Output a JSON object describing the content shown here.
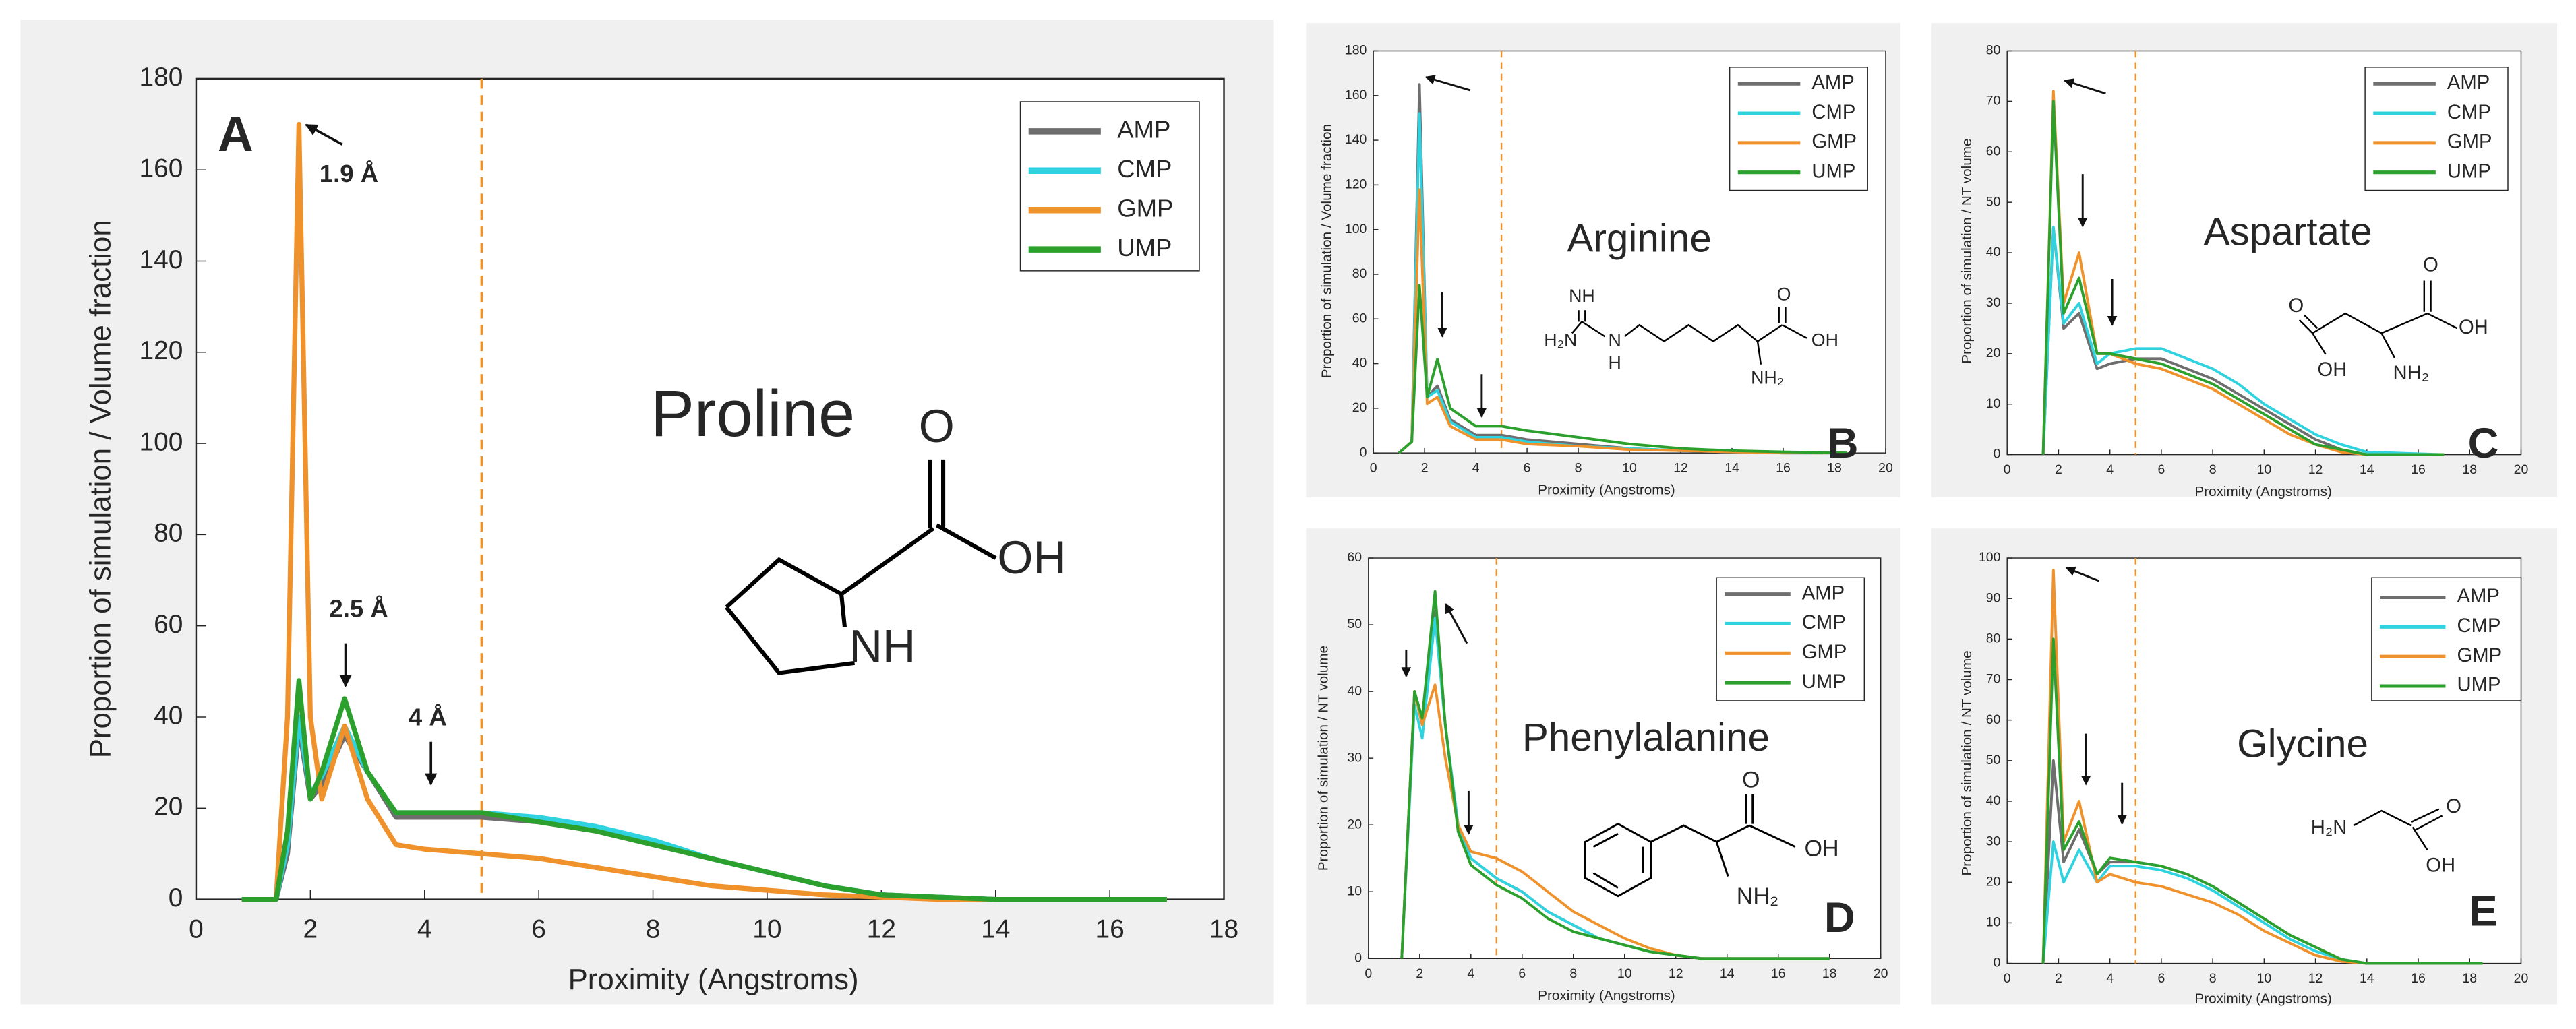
{
  "chart_data": [
    {
      "type": "line",
      "panel": "A",
      "name": "Proline",
      "xlabel": "Proximity (Angstroms)",
      "ylabel": "Proportion of simulation / Volume fraction",
      "annotations": [
        "1.9 Å",
        "2.5 Å",
        "4 Å"
      ],
      "structure_labels": [
        "O",
        "OH",
        "NH"
      ],
      "xlim": [
        0,
        18
      ],
      "ylim": [
        0,
        180
      ],
      "xticks": [
        0,
        2,
        4,
        6,
        8,
        10,
        12,
        14,
        16,
        18
      ],
      "yticks": [
        0,
        20,
        40,
        60,
        80,
        100,
        120,
        140,
        160,
        180
      ],
      "legend": "upper right",
      "vline": 5,
      "vline_color": "#f0922b",
      "x": [
        0.8,
        1.4,
        1.6,
        1.8,
        2.0,
        2.2,
        2.6,
        3.0,
        3.5,
        4,
        5,
        6,
        7,
        8,
        9,
        10,
        11,
        12,
        13,
        14,
        16,
        17
      ],
      "series": [
        {
          "name": "AMP",
          "color": "#6e6e6e",
          "values": [
            0,
            0,
            10,
            38,
            22,
            25,
            36,
            28,
            18,
            18,
            18,
            17,
            15,
            12,
            9,
            6,
            3,
            1,
            0.5,
            0,
            0,
            0
          ]
        },
        {
          "name": "CMP",
          "color": "#2fd3e0",
          "values": [
            0,
            0,
            12,
            40,
            23,
            27,
            38,
            28,
            19,
            19,
            19,
            18,
            16,
            13,
            9,
            6,
            3,
            1,
            0.5,
            0,
            0,
            0
          ]
        },
        {
          "name": "GMP",
          "color": "#f0922b",
          "values": [
            0,
            0,
            40,
            170,
            40,
            22,
            38,
            22,
            12,
            11,
            10,
            9,
            7,
            5,
            3,
            2,
            1,
            0.5,
            0,
            0,
            0,
            0
          ]
        },
        {
          "name": "UMP",
          "color": "#2ca02c",
          "values": [
            0,
            0,
            15,
            48,
            22,
            28,
            44,
            28,
            19,
            19,
            19,
            17,
            15,
            12,
            9,
            6,
            3,
            1,
            0.5,
            0,
            0,
            0
          ]
        }
      ]
    },
    {
      "type": "line",
      "panel": "B",
      "name": "Arginine",
      "xlabel": "Proximity (Angstroms)",
      "ylabel": "Proportion of simulation / Volume fraction",
      "structure_labels": [
        "NH",
        "H₂N",
        "N",
        "H",
        "O",
        "OH",
        "NH₂"
      ],
      "xlim": [
        0,
        20
      ],
      "ylim": [
        0,
        180
      ],
      "xticks": [
        0,
        2,
        4,
        6,
        8,
        10,
        12,
        14,
        16,
        18,
        20
      ],
      "yticks": [
        0,
        20,
        40,
        60,
        80,
        100,
        120,
        140,
        160,
        180
      ],
      "legend": "upper right",
      "vline": 5,
      "vline_color": "#f0922b",
      "x": [
        1,
        1.5,
        1.8,
        2.1,
        2.5,
        3,
        4,
        5,
        6,
        8,
        10,
        12,
        14,
        16,
        18.5
      ],
      "series": [
        {
          "name": "AMP",
          "color": "#6e6e6e",
          "values": [
            0,
            5,
            165,
            25,
            30,
            15,
            8,
            8,
            6,
            4,
            2,
            1,
            0.5,
            0,
            0
          ]
        },
        {
          "name": "CMP",
          "color": "#2fd3e0",
          "values": [
            0,
            5,
            152,
            25,
            28,
            14,
            7,
            7,
            5,
            3,
            2,
            1,
            0.5,
            0,
            0
          ]
        },
        {
          "name": "GMP",
          "color": "#f0922b",
          "values": [
            0,
            5,
            118,
            22,
            25,
            12,
            6,
            6,
            4,
            3,
            1.5,
            1,
            0.5,
            0,
            0
          ]
        },
        {
          "name": "UMP",
          "color": "#2ca02c",
          "values": [
            0,
            5,
            75,
            25,
            42,
            20,
            12,
            12,
            10,
            7,
            4,
            2,
            1,
            0.5,
            0
          ]
        }
      ]
    },
    {
      "type": "line",
      "panel": "C",
      "name": "Aspartate",
      "xlabel": "Proximity (Angstroms)",
      "ylabel": "Proportion of simulation / NT volume",
      "structure_labels": [
        "O",
        "OH",
        "O",
        "OH",
        "NH₂"
      ],
      "xlim": [
        0,
        20
      ],
      "ylim": [
        0,
        80
      ],
      "xticks": [
        0,
        2,
        4,
        6,
        8,
        10,
        12,
        14,
        16,
        18,
        20
      ],
      "yticks": [
        0,
        10,
        20,
        30,
        40,
        50,
        60,
        70,
        80
      ],
      "legend": "upper right",
      "vline": 5,
      "vline_color": "#f0922b",
      "x": [
        1.4,
        1.8,
        2.2,
        2.8,
        3.5,
        4,
        5,
        6,
        7,
        8,
        9,
        10,
        11,
        12,
        13,
        14,
        17
      ],
      "series": [
        {
          "name": "AMP",
          "color": "#6e6e6e",
          "values": [
            0,
            45,
            25,
            28,
            17,
            18,
            19,
            19,
            17,
            15,
            12,
            9,
            6,
            3,
            1,
            0,
            0
          ]
        },
        {
          "name": "CMP",
          "color": "#2fd3e0",
          "values": [
            0,
            45,
            26,
            30,
            18,
            20,
            21,
            21,
            19,
            17,
            14,
            10,
            7,
            4,
            2,
            0.5,
            0
          ]
        },
        {
          "name": "GMP",
          "color": "#f0922b",
          "values": [
            0,
            72,
            30,
            40,
            20,
            20,
            18,
            17,
            15,
            13,
            10,
            7,
            4,
            2,
            0.5,
            0,
            0
          ]
        },
        {
          "name": "UMP",
          "color": "#2ca02c",
          "values": [
            0,
            70,
            28,
            35,
            20,
            20,
            19,
            18,
            16,
            14,
            11,
            8,
            5,
            2,
            1,
            0,
            0
          ]
        }
      ]
    },
    {
      "type": "line",
      "panel": "D",
      "name": "Phenylalanine",
      "xlabel": "Proximity (Angstroms)",
      "ylabel": "Proportion of simulation / NT volume",
      "structure_labels": [
        "O",
        "OH",
        "NH₂"
      ],
      "xlim": [
        0,
        20
      ],
      "ylim": [
        0,
        60
      ],
      "xticks": [
        0,
        2,
        4,
        6,
        8,
        10,
        12,
        14,
        16,
        18,
        20
      ],
      "yticks": [
        0,
        10,
        20,
        30,
        40,
        50,
        60
      ],
      "legend": "upper right",
      "vline": 5,
      "vline_color": "#f0922b",
      "x": [
        1.3,
        1.8,
        2.1,
        2.6,
        3,
        3.5,
        4,
        5,
        6,
        7,
        8,
        9,
        10,
        11,
        12,
        13,
        15,
        18
      ],
      "series": [
        {
          "name": "AMP",
          "color": "#6e6e6e",
          "values": [
            0,
            40,
            35,
            52,
            35,
            20,
            15,
            12,
            10,
            7,
            5,
            3,
            2,
            1,
            0.5,
            0,
            0,
            0
          ]
        },
        {
          "name": "CMP",
          "color": "#2fd3e0",
          "values": [
            0,
            38,
            33,
            51,
            35,
            20,
            15,
            12,
            10,
            7,
            5,
            3,
            2,
            1,
            0.5,
            0,
            0,
            0
          ]
        },
        {
          "name": "GMP",
          "color": "#f0922b",
          "values": [
            0,
            40,
            35,
            41,
            30,
            20,
            16,
            15,
            13,
            10,
            7,
            5,
            3,
            1.5,
            0.5,
            0,
            0,
            0
          ]
        },
        {
          "name": "UMP",
          "color": "#2ca02c",
          "values": [
            0,
            40,
            36,
            55,
            35,
            19,
            14,
            11,
            9,
            6,
            4,
            3,
            2,
            1,
            0.5,
            0,
            0,
            0
          ]
        }
      ]
    },
    {
      "type": "line",
      "panel": "E",
      "name": "Glycine",
      "xlabel": "Proximity (Angstroms)",
      "ylabel": "Proportion of simulation / NT volume",
      "structure_labels": [
        "H₂N",
        "O",
        "OH"
      ],
      "xlim": [
        0,
        20
      ],
      "ylim": [
        0,
        100
      ],
      "xticks": [
        0,
        2,
        4,
        6,
        8,
        10,
        12,
        14,
        16,
        18,
        20
      ],
      "yticks": [
        0,
        10,
        20,
        30,
        40,
        50,
        60,
        70,
        80,
        90,
        100
      ],
      "legend": "upper right",
      "vline": 5,
      "vline_color": "#f0922b",
      "x": [
        1.4,
        1.8,
        2.2,
        2.8,
        3.5,
        4,
        5,
        6,
        7,
        8,
        9,
        10,
        11,
        12,
        13,
        14,
        18.5
      ],
      "series": [
        {
          "name": "AMP",
          "color": "#6e6e6e",
          "values": [
            0,
            50,
            25,
            33,
            22,
            25,
            25,
            24,
            22,
            19,
            15,
            11,
            7,
            4,
            1,
            0,
            0
          ]
        },
        {
          "name": "CMP",
          "color": "#2fd3e0",
          "values": [
            0,
            30,
            20,
            28,
            20,
            24,
            24,
            23,
            21,
            18,
            14,
            10,
            6,
            3,
            1,
            0,
            0
          ]
        },
        {
          "name": "GMP",
          "color": "#f0922b",
          "values": [
            0,
            97,
            30,
            40,
            20,
            22,
            20,
            19,
            17,
            15,
            12,
            8,
            5,
            2,
            0.5,
            0,
            0
          ]
        },
        {
          "name": "UMP",
          "color": "#2ca02c",
          "values": [
            0,
            80,
            28,
            35,
            22,
            26,
            25,
            24,
            22,
            19,
            15,
            11,
            7,
            4,
            1,
            0,
            0
          ]
        }
      ]
    }
  ]
}
